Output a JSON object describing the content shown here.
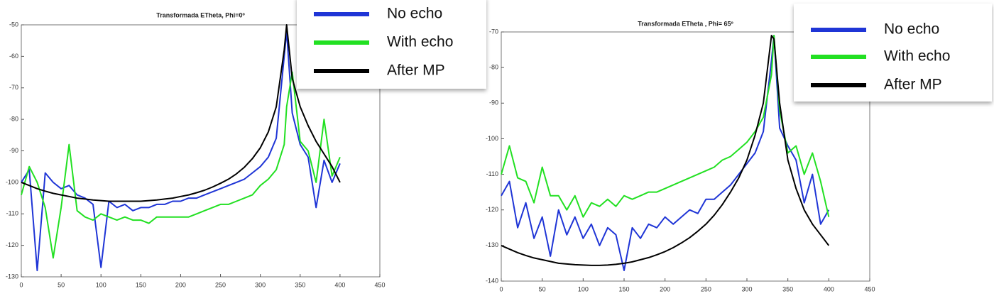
{
  "chart_data": [
    {
      "type": "line",
      "title": "Transformada ETheta, Phi=0º",
      "x": [
        0,
        10,
        20,
        30,
        40,
        50,
        60,
        70,
        80,
        90,
        100,
        110,
        120,
        130,
        140,
        150,
        160,
        170,
        180,
        190,
        200,
        210,
        220,
        230,
        240,
        250,
        260,
        270,
        280,
        290,
        300,
        310,
        320,
        330,
        333,
        340,
        350,
        360,
        370,
        380,
        390,
        400
      ],
      "xlim": [
        0,
        450
      ],
      "xticks": [
        0,
        50,
        100,
        150,
        200,
        250,
        300,
        350,
        400,
        450
      ],
      "ylim": [
        -130,
        -50
      ],
      "yticks": [
        -130,
        -120,
        -110,
        -100,
        -90,
        -80,
        -70,
        -60,
        -50
      ],
      "legend": "upper right",
      "series": [
        {
          "name": "No echo",
          "color": "#1f35d6",
          "values": [
            -100,
            -96,
            -128,
            -97,
            -100,
            -102,
            -101,
            -104,
            -105,
            -107,
            -127,
            -106,
            -108,
            -107,
            -109,
            -108,
            -108,
            -107,
            -107,
            -106,
            -106,
            -105,
            -105,
            -104,
            -103,
            -102,
            -101,
            -100,
            -99,
            -97,
            -95,
            -92,
            -86,
            -60,
            -52,
            -78,
            -88,
            -92,
            -108,
            -93,
            -100,
            -94
          ]
        },
        {
          "name": "With echo",
          "color": "#22e022",
          "values": [
            -104,
            -95,
            -100,
            -108,
            -124,
            -108,
            -88,
            -109,
            -111,
            -112,
            -110,
            -111,
            -112,
            -111,
            -112,
            -112,
            -113,
            -111,
            -111,
            -111,
            -111,
            -111,
            -110,
            -109,
            -108,
            -107,
            -107,
            -106,
            -105,
            -104,
            -101,
            -99,
            -96,
            -88,
            -76,
            -65,
            -87,
            -90,
            -100,
            -80,
            -98,
            -92
          ]
        },
        {
          "name": "After MP",
          "color": "#000000",
          "values": [
            -100,
            -101,
            -102,
            -102.8,
            -103.5,
            -104,
            -104.5,
            -105,
            -105.3,
            -105.6,
            -105.8,
            -106,
            -106,
            -106,
            -106,
            -106,
            -105.8,
            -105.6,
            -105.3,
            -105,
            -104.5,
            -104,
            -103.3,
            -102.5,
            -101.5,
            -100.3,
            -99,
            -97.3,
            -95.2,
            -92.5,
            -89,
            -84,
            -76,
            -58,
            -50,
            -67,
            -76,
            -82,
            -87,
            -91,
            -95,
            -100
          ]
        }
      ]
    },
    {
      "type": "line",
      "title": "Transformada ETheta , Phi= 65º",
      "x": [
        0,
        10,
        20,
        30,
        40,
        50,
        60,
        70,
        80,
        90,
        100,
        110,
        120,
        130,
        140,
        150,
        160,
        170,
        180,
        190,
        200,
        210,
        220,
        230,
        240,
        250,
        260,
        270,
        280,
        290,
        300,
        310,
        320,
        330,
        333,
        340,
        350,
        360,
        370,
        380,
        390,
        400
      ],
      "xlim": [
        0,
        450
      ],
      "xticks": [
        0,
        50,
        100,
        150,
        200,
        250,
        300,
        350,
        400,
        450
      ],
      "ylim": [
        -140,
        -70
      ],
      "yticks": [
        -140,
        -130,
        -120,
        -110,
        -100,
        -90,
        -80,
        -70
      ],
      "legend": "upper right",
      "series": [
        {
          "name": "No echo",
          "color": "#1f35d6",
          "values": [
            -116,
            -112,
            -125,
            -118,
            -128,
            -122,
            -133,
            -120,
            -127,
            -122,
            -128,
            -124,
            -130,
            -125,
            -127,
            -137,
            -125,
            -128,
            -124,
            -125,
            -122,
            -124,
            -122,
            -120,
            -121,
            -117,
            -117,
            -115,
            -113,
            -110,
            -107,
            -104,
            -98,
            -78,
            -71,
            -97,
            -102,
            -106,
            -118,
            -110,
            -124,
            -120
          ]
        },
        {
          "name": "With echo",
          "color": "#22e022",
          "values": [
            -110,
            -102,
            -111,
            -112,
            -118,
            -108,
            -116,
            -116,
            -120,
            -116,
            -122,
            -118,
            -119,
            -117,
            -119,
            -116,
            -117,
            -116,
            -115,
            -115,
            -114,
            -113,
            -112,
            -111,
            -110,
            -109,
            -108,
            -106,
            -105,
            -103,
            -101,
            -98,
            -94,
            -82,
            -71,
            -92,
            -104,
            -102,
            -110,
            -104,
            -112,
            -122
          ]
        },
        {
          "name": "After MP",
          "color": "#000000",
          "values": [
            -130,
            -131,
            -132,
            -132.8,
            -133.5,
            -134,
            -134.5,
            -135,
            -135.2,
            -135.4,
            -135.5,
            -135.6,
            -135.6,
            -135.5,
            -135.3,
            -135,
            -134.6,
            -134,
            -133.4,
            -132.6,
            -131.7,
            -130.6,
            -129.3,
            -127.8,
            -126,
            -124,
            -121.5,
            -118.5,
            -115,
            -111,
            -106,
            -99,
            -90,
            -71,
            -72,
            -90,
            -106,
            -114,
            -120,
            -124,
            -127,
            -130
          ]
        }
      ]
    }
  ]
}
